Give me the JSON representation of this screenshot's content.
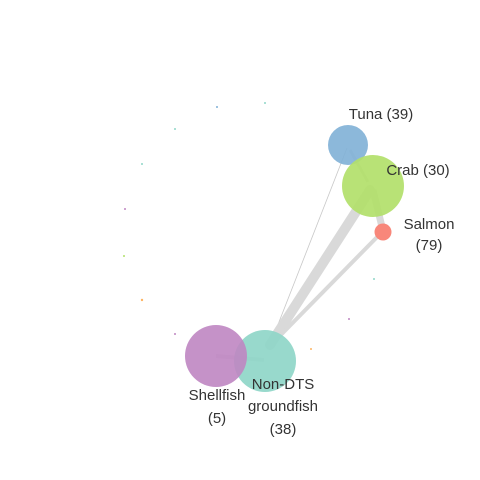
{
  "network": {
    "colors": {
      "edge": "#d9d9d9",
      "edge_thin": "#c8c8c8",
      "tuna": "#7fb0d6",
      "crab": "#b2df6a",
      "salmon": "#f8877a",
      "shellfish": "#bf86c2",
      "groundfish": "#8fd6c8",
      "label": "#333333"
    },
    "nodes": [
      {
        "id": "tuna",
        "name": "Tuna",
        "value": "(39)",
        "label": "Tuna (39)"
      },
      {
        "id": "crab",
        "name": "Crab",
        "value": "(30)",
        "label": "Crab (30)"
      },
      {
        "id": "salmon",
        "name": "Salmon",
        "value": "(79)"
      },
      {
        "id": "shellfish",
        "name": "Shellfish",
        "value": "(5)"
      },
      {
        "id": "groundfish",
        "name_line1": "Non-DTS",
        "name_line2": "groundfish",
        "value": "(38)"
      }
    ]
  }
}
